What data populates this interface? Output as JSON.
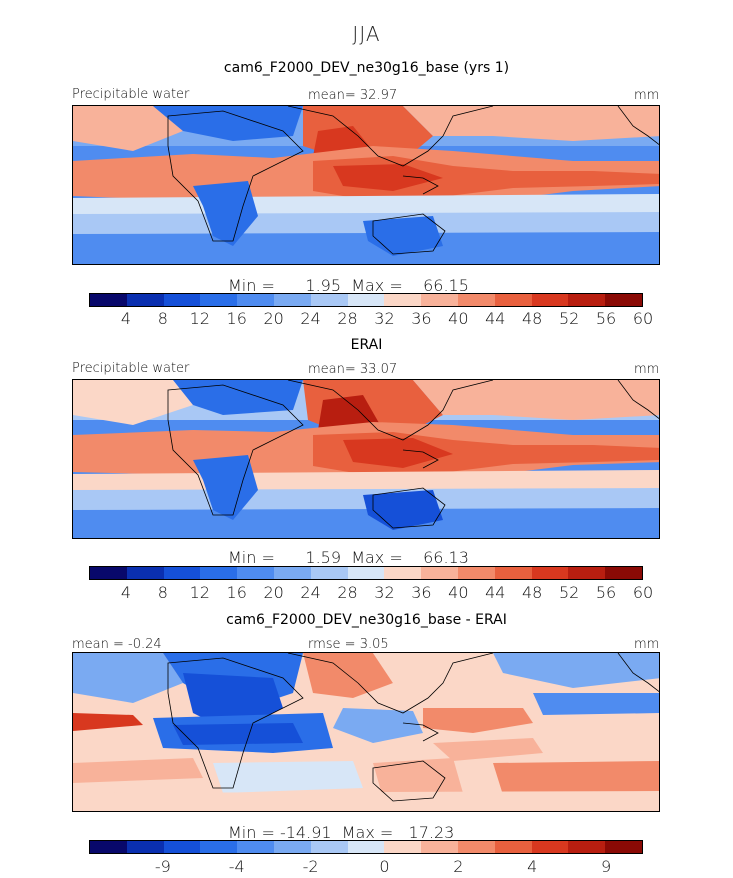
{
  "season": "JJA",
  "panels": [
    {
      "title": "cam6_F2000_DEV_ne30g16_base (yrs 1)",
      "left_label": "Precipitable water",
      "center_label": "mean=   32.97",
      "units": "mm",
      "minmax": "Min =      1.95  Max =    66.15",
      "ticks": [
        "4",
        "8",
        "12",
        "16",
        "20",
        "24",
        "28",
        "32",
        "36",
        "40",
        "44",
        "48",
        "52",
        "56",
        "60"
      ],
      "kind": "abs"
    },
    {
      "title": "ERAI",
      "left_label": "Precipitable water",
      "center_label": "mean=   33.07",
      "units": "mm",
      "minmax": "Min =      1.59  Max =    66.13",
      "ticks": [
        "4",
        "8",
        "12",
        "16",
        "20",
        "24",
        "28",
        "32",
        "36",
        "40",
        "44",
        "48",
        "52",
        "56",
        "60"
      ],
      "kind": "abs"
    },
    {
      "title": "cam6_F2000_DEV_ne30g16_base - ERAI",
      "left_label": "mean =   -0.24",
      "center_label": "rmse =    3.05",
      "units": "mm",
      "minmax": "Min = -14.91  Max =   17.23",
      "ticks": [
        "-9",
        "-4",
        "-2",
        "0",
        "2",
        "4",
        "9"
      ],
      "kind": "diff"
    }
  ],
  "colorbar_colors": [
    "#08086b",
    "#0a2fb0",
    "#1550d8",
    "#2a6ee8",
    "#4f8cf0",
    "#7aaaf2",
    "#a9c8f5",
    "#d7e6f7",
    "#fbd7c7",
    "#f8b29a",
    "#f28a6a",
    "#e8603e",
    "#d8381f",
    "#b81e10",
    "#8a0a05"
  ]
}
